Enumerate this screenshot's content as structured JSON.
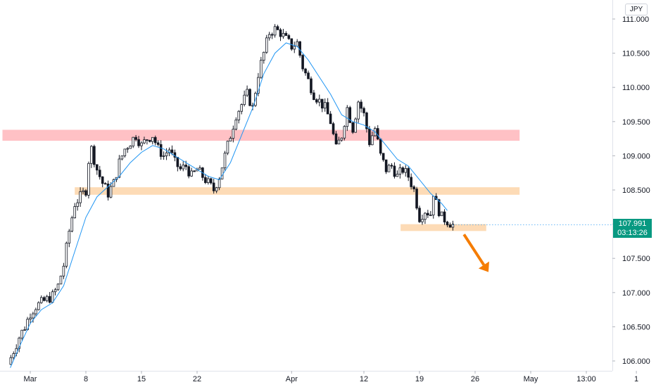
{
  "currency": "JPY",
  "price_tag": {
    "price": "107.991",
    "countdown": "03:13:26",
    "color": "#089981"
  },
  "colors": {
    "bull": "#ffffff",
    "bear": "#131722",
    "ma": "#2196f3",
    "resistance_zone": "#ffc1c5",
    "support_zone": "#fddbb6",
    "arrow": "#f57c00"
  },
  "chart_data": {
    "type": "candlestick",
    "ylim": [
      105.9,
      111.3
    ],
    "y_ticks": [
      "106.000",
      "106.500",
      "107.000",
      "107.500",
      "108.000",
      "108.500",
      "109.000",
      "109.500",
      "110.000",
      "110.500",
      "111.000"
    ],
    "x_ticks": [
      {
        "label": "Mar",
        "t": 0
      },
      {
        "label": "8",
        "t": 5
      },
      {
        "label": "15",
        "t": 10
      },
      {
        "label": "22",
        "t": 15
      },
      {
        "label": "Apr",
        "t": 23.5
      },
      {
        "label": "12",
        "t": 30
      },
      {
        "label": "19",
        "t": 35
      },
      {
        "label": "26",
        "t": 40
      },
      {
        "label": "May",
        "t": 45
      },
      {
        "label": "13:00",
        "t": 50
      },
      {
        "label": "1",
        "t": 54.5
      }
    ],
    "close_path": [
      [
        -2,
        105.95
      ],
      [
        -1.5,
        106.15
      ],
      [
        -1,
        106.35
      ],
      [
        -0.5,
        106.5
      ],
      [
        0,
        106.7
      ],
      [
        0.5,
        106.8
      ],
      [
        1,
        106.85
      ],
      [
        1.5,
        106.9
      ],
      [
        2,
        106.95
      ],
      [
        2.5,
        107.1
      ],
      [
        3,
        107.4
      ],
      [
        3.5,
        107.9
      ],
      [
        4,
        108.3
      ],
      [
        4.5,
        108.4
      ],
      [
        5,
        108.5
      ],
      [
        5.2,
        108.9
      ],
      [
        5.5,
        109.1
      ],
      [
        6,
        108.8
      ],
      [
        6.5,
        108.6
      ],
      [
        7,
        108.45
      ],
      [
        7.5,
        108.6
      ],
      [
        8,
        108.9
      ],
      [
        8.5,
        109.1
      ],
      [
        9,
        109.2
      ],
      [
        9.5,
        109.3
      ],
      [
        10,
        109.15
      ],
      [
        10.5,
        109.25
      ],
      [
        11,
        109.3
      ],
      [
        11.5,
        109.1
      ],
      [
        12,
        109.0
      ],
      [
        12.5,
        109.1
      ],
      [
        13,
        108.9
      ],
      [
        13.5,
        108.8
      ],
      [
        14,
        108.85
      ],
      [
        14.5,
        108.7
      ],
      [
        15,
        108.8
      ],
      [
        15.5,
        108.7
      ],
      [
        16,
        108.6
      ],
      [
        16.5,
        108.5
      ],
      [
        17,
        108.7
      ],
      [
        17.5,
        109.0
      ],
      [
        18,
        109.3
      ],
      [
        18.5,
        109.6
      ],
      [
        19,
        109.75
      ],
      [
        19.5,
        109.9
      ],
      [
        20,
        109.7
      ],
      [
        20.5,
        110.2
      ],
      [
        21,
        110.5
      ],
      [
        21.5,
        110.8
      ],
      [
        22,
        110.85
      ],
      [
        22.5,
        110.8
      ],
      [
        23,
        110.7
      ],
      [
        23.5,
        110.6
      ],
      [
        24,
        110.65
      ],
      [
        24.5,
        110.3
      ],
      [
        25,
        110.1
      ],
      [
        25.5,
        109.9
      ],
      [
        26,
        109.8
      ],
      [
        26.5,
        109.7
      ],
      [
        27,
        109.5
      ],
      [
        27.5,
        109.1
      ],
      [
        28,
        109.3
      ],
      [
        28.5,
        109.7
      ],
      [
        29,
        109.4
      ],
      [
        29.5,
        109.8
      ],
      [
        30,
        109.6
      ],
      [
        30.5,
        109.2
      ],
      [
        31,
        109.4
      ],
      [
        31.5,
        109.0
      ],
      [
        32,
        108.8
      ],
      [
        32.5,
        108.85
      ],
      [
        33,
        108.7
      ],
      [
        33.5,
        108.8
      ],
      [
        34,
        108.7
      ],
      [
        34.5,
        108.5
      ],
      [
        35,
        108.1
      ],
      [
        35.5,
        108.2
      ],
      [
        36,
        108.15
      ],
      [
        36.2,
        108.5
      ],
      [
        36.5,
        108.3
      ],
      [
        37,
        108.1
      ],
      [
        37.5,
        108.05
      ],
      [
        38,
        107.99
      ]
    ],
    "ma_path": [
      [
        -1.8,
        105.9
      ],
      [
        -1,
        106.2
      ],
      [
        0,
        106.55
      ],
      [
        1,
        106.75
      ],
      [
        2,
        106.85
      ],
      [
        3,
        107.1
      ],
      [
        4,
        107.6
      ],
      [
        5,
        108.1
      ],
      [
        6,
        108.4
      ],
      [
        7,
        108.55
      ],
      [
        8,
        108.7
      ],
      [
        9,
        108.9
      ],
      [
        10,
        109.05
      ],
      [
        11,
        109.15
      ],
      [
        12,
        109.1
      ],
      [
        13,
        109.0
      ],
      [
        14,
        108.9
      ],
      [
        15,
        108.8
      ],
      [
        16,
        108.7
      ],
      [
        17,
        108.65
      ],
      [
        18,
        108.9
      ],
      [
        19,
        109.3
      ],
      [
        20,
        109.7
      ],
      [
        21,
        110.2
      ],
      [
        22,
        110.5
      ],
      [
        23,
        110.65
      ],
      [
        24,
        110.6
      ],
      [
        25,
        110.4
      ],
      [
        26,
        110.15
      ],
      [
        27,
        109.9
      ],
      [
        28,
        109.6
      ],
      [
        29,
        109.5
      ],
      [
        30,
        109.45
      ],
      [
        31,
        109.35
      ],
      [
        32,
        109.15
      ],
      [
        33,
        108.95
      ],
      [
        34,
        108.85
      ],
      [
        35,
        108.65
      ],
      [
        36,
        108.45
      ],
      [
        37,
        108.3
      ],
      [
        37.5,
        108.2
      ]
    ],
    "zones": [
      {
        "kind": "resistance",
        "t1": -2.5,
        "t2": 44,
        "y1": 109.22,
        "y2": 109.38
      },
      {
        "kind": "support",
        "t1": 4,
        "t2": 44,
        "y1": 108.43,
        "y2": 108.54
      },
      {
        "kind": "support",
        "t1": 33.3,
        "t2": 41,
        "y1": 107.9,
        "y2": 108.0
      }
    ],
    "arrow": {
      "t1": 39,
      "y1": 107.85,
      "t2": 41.2,
      "y2": 107.3
    },
    "series_note": "USDJPY daily candles with moving average"
  }
}
